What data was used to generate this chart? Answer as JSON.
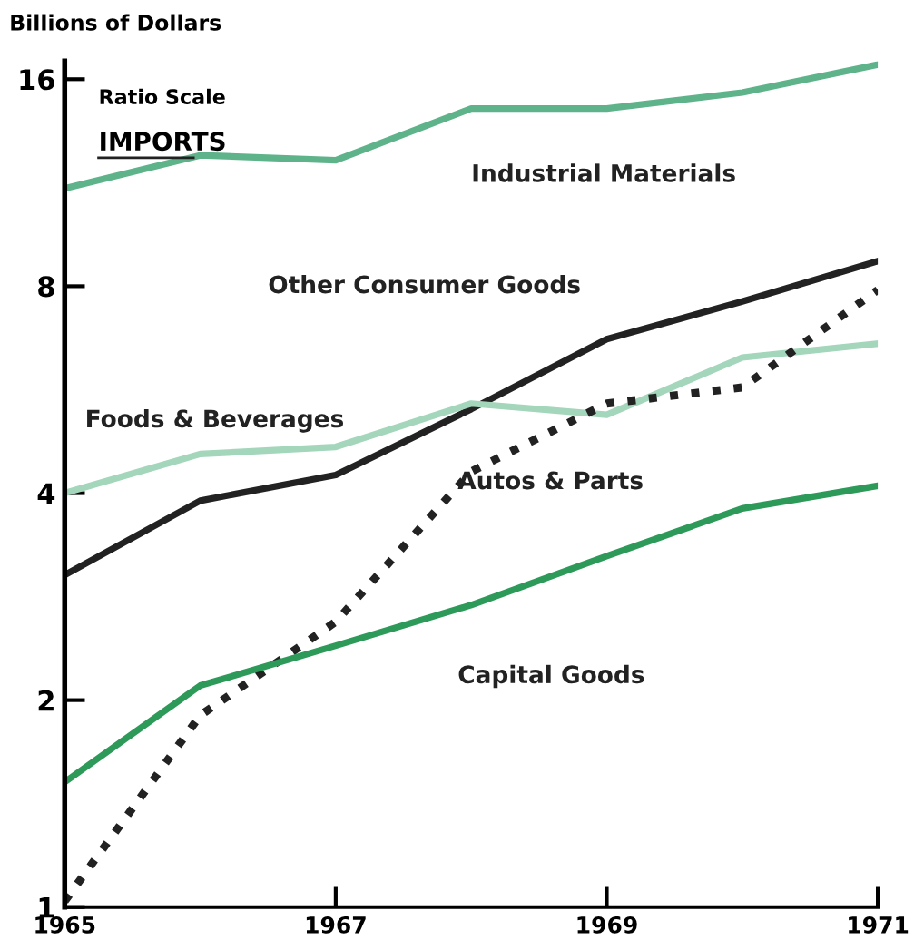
{
  "chart_data": {
    "type": "line",
    "ylabel": "Billions of Dollars",
    "annotations": [
      "Ratio Scale",
      "IMPORTS"
    ],
    "x": [
      1965,
      1966,
      1967,
      1968,
      1969,
      1970,
      1971
    ],
    "series": [
      {
        "name": "Industrial Materials",
        "color": "#5fb38a",
        "line_style": "solid",
        "values": [
          11.1,
          12.4,
          12.2,
          14.5,
          14.5,
          15.3,
          16.8
        ]
      },
      {
        "name": "Other Consumer Goods",
        "color": "#222222",
        "line_style": "solid",
        "values": [
          3.04,
          3.9,
          4.25,
          5.3,
          6.7,
          7.6,
          8.7
        ]
      },
      {
        "name": "Foods & Beverages",
        "color": "#a3d6bb",
        "line_style": "solid",
        "values": [
          4.0,
          4.56,
          4.67,
          5.4,
          5.2,
          6.3,
          6.6
        ]
      },
      {
        "name": "Autos & Parts",
        "color": "#222222",
        "line_style": "dotted",
        "values": [
          1.02,
          1.9,
          2.6,
          4.3,
          5.4,
          5.7,
          7.9
        ]
      },
      {
        "name": "Capital Goods",
        "color": "#2e9a5a",
        "line_style": "solid",
        "values": [
          1.52,
          2.1,
          2.4,
          2.75,
          3.24,
          3.8,
          4.1
        ]
      }
    ],
    "log": "y",
    "xlim": [
      1965,
      1971
    ],
    "ylim": [
      1,
      17
    ],
    "xticks": [
      1965,
      1967,
      1969,
      1971
    ],
    "yticks": [
      1,
      2,
      4,
      8,
      16
    ],
    "grid": false,
    "legend": false,
    "marker": "none"
  }
}
